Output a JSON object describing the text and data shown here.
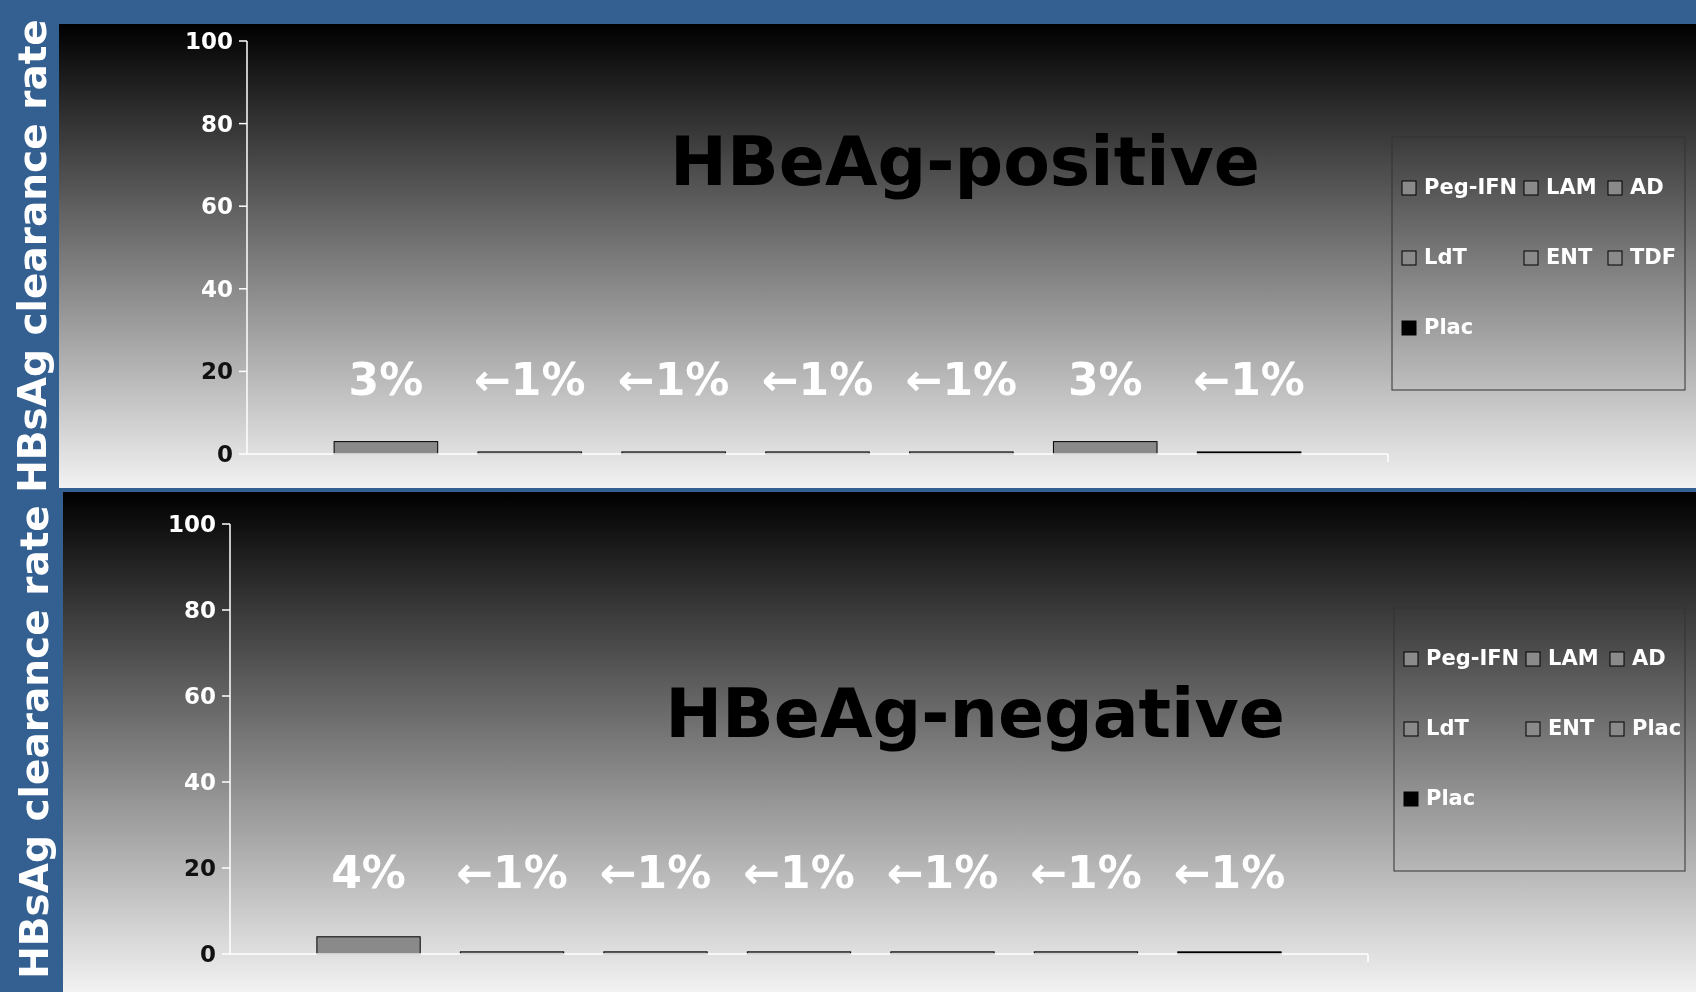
{
  "chart_data": [
    {
      "type": "bar",
      "title": "HBeAg-positive",
      "ylabel": "HBsAg clearance rate",
      "categories": [
        null
      ],
      "ylim": [
        0,
        100
      ],
      "yticks": [
        0,
        20,
        40,
        60,
        80,
        100
      ],
      "grid": false,
      "legend": "right",
      "series": [
        {
          "name": "Peg-IFN",
          "color": "#8a8a8a",
          "values": [
            3
          ],
          "value_labels": [
            "3%"
          ]
        },
        {
          "name": "LAM",
          "color": "#8a8a8a",
          "values": [
            0.5
          ],
          "value_labels": [
            "←1%"
          ]
        },
        {
          "name": "AD",
          "color": "#8a8a8a",
          "values": [
            0.5
          ],
          "value_labels": [
            "←1%"
          ]
        },
        {
          "name": "LdT",
          "color": "#8a8a8a",
          "values": [
            0.5
          ],
          "value_labels": [
            "←1%"
          ]
        },
        {
          "name": "ENT",
          "color": "#8a8a8a",
          "values": [
            0.5
          ],
          "value_labels": [
            "←1%"
          ]
        },
        {
          "name": "TDF",
          "color": "#8a8a8a",
          "values": [
            3
          ],
          "value_labels": [
            "3%"
          ]
        },
        {
          "name": "Plac",
          "color": "#000000",
          "values": [
            0.5
          ],
          "value_labels": [
            "←1%"
          ]
        }
      ]
    },
    {
      "type": "bar",
      "title": "HBeAg-negative",
      "ylabel": "HBsAg clearance rate",
      "categories": [
        null
      ],
      "ylim": [
        0,
        100
      ],
      "yticks": [
        0,
        20,
        40,
        60,
        80,
        100
      ],
      "grid": false,
      "legend": "right",
      "series": [
        {
          "name": "Peg-IFN",
          "color": "#8a8a8a",
          "values": [
            4
          ],
          "value_labels": [
            "4%"
          ]
        },
        {
          "name": "LAM",
          "color": "#8a8a8a",
          "values": [
            0.5
          ],
          "value_labels": [
            "←1%"
          ]
        },
        {
          "name": "AD",
          "color": "#8a8a8a",
          "values": [
            0.5
          ],
          "value_labels": [
            "←1%"
          ]
        },
        {
          "name": "LdT",
          "color": "#8a8a8a",
          "values": [
            0.5
          ],
          "value_labels": [
            "←1%"
          ]
        },
        {
          "name": "ENT",
          "color": "#8a8a8a",
          "values": [
            0.5
          ],
          "value_labels": [
            "←1%"
          ]
        },
        {
          "name": "Plac",
          "color": "#8a8a8a",
          "values": [
            0.5
          ],
          "value_labels": [
            "←1%"
          ]
        },
        {
          "name": "Plac",
          "color": "#000000",
          "values": [
            0.5
          ],
          "value_labels": [
            "←1%"
          ]
        }
      ]
    }
  ]
}
